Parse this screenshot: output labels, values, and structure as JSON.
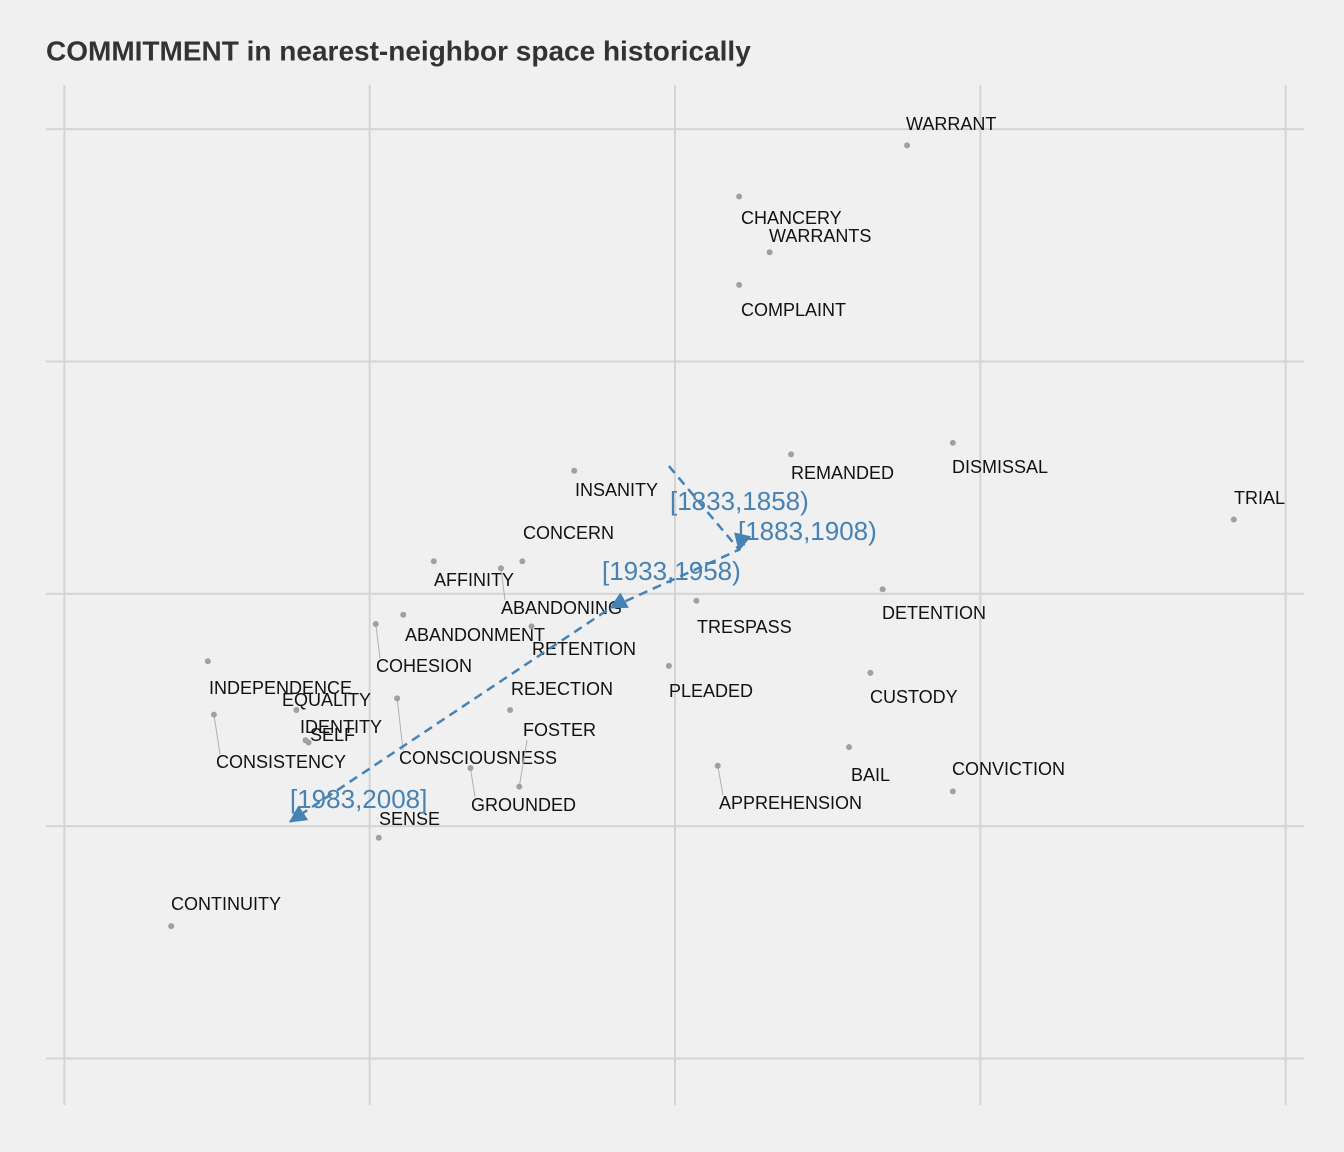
{
  "chart_data": {
    "type": "scatter",
    "title": "COMMITMENT in nearest-neighbor space historically",
    "xlim": [
      -0.06,
      4.06
    ],
    "ylim": [
      -0.2,
      4.19
    ],
    "xticks": [
      0,
      1,
      2,
      3,
      4
    ],
    "yticks": [
      0,
      1,
      2,
      3,
      4
    ],
    "grid": true,
    "neighbors": {
      "color": "#a0a0a0",
      "labels": [
        "WARRANT",
        "CHANCERY",
        "WARRANTS",
        "COMPLAINT",
        "REMANDED",
        "DISMISSAL",
        "TRIAL",
        "INSANITY",
        "CONCERN",
        "AFFINITY",
        "ABANDONING",
        "ABANDONMENT",
        "RETENTION",
        "TRESPASS",
        "DETENTION",
        "COHESION",
        "PLEADED",
        "REJECTION",
        "CUSTODY",
        "INDEPENDENCE",
        "EQUALITY",
        "IDENTITY",
        "SELF",
        "CONSISTENCY",
        "CONSCIOUSNESS",
        "FOSTER",
        "GROUNDED",
        "APPREHENSION",
        "BAIL",
        "CONVICTION",
        "SENSE",
        "CONTINUITY"
      ],
      "x": [
        2.76,
        2.21,
        2.31,
        2.21,
        2.38,
        2.91,
        3.83,
        1.67,
        1.5,
        1.21,
        1.43,
        1.11,
        1.53,
        2.07,
        2.68,
        1.02,
        1.98,
        1.46,
        2.64,
        0.47,
        0.76,
        0.79,
        0.8,
        0.49,
        1.09,
        1.49,
        1.33,
        2.14,
        2.57,
        2.91,
        1.03,
        0.35
      ],
      "y": [
        3.93,
        3.71,
        3.47,
        3.33,
        2.6,
        2.65,
        2.32,
        2.53,
        2.14,
        2.14,
        2.11,
        1.91,
        1.86,
        1.97,
        2.02,
        1.87,
        1.69,
        1.5,
        1.66,
        1.71,
        1.5,
        1.37,
        1.36,
        1.48,
        1.55,
        1.17,
        1.25,
        1.26,
        1.34,
        1.15,
        0.95,
        0.57
      ]
    },
    "trajectory": {
      "color": "#4682b4",
      "labels": [
        "[1833,1858)",
        "[1883,1908)",
        "[1933,1958)",
        "[1983,2008]"
      ],
      "x": [
        1.98,
        2.21,
        1.79,
        0.74
      ],
      "y": [
        2.55,
        2.19,
        1.94,
        1.02
      ]
    }
  }
}
